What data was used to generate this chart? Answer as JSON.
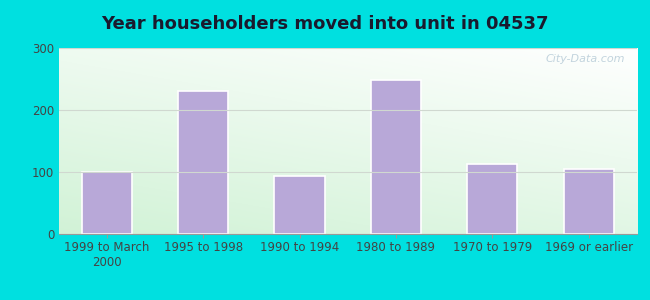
{
  "title": "Year householders moved into unit in 04537",
  "categories": [
    "1999 to March\n2000",
    "1995 to 1998",
    "1990 to 1994",
    "1980 to 1989",
    "1970 to 1979",
    "1969 or earlier"
  ],
  "values": [
    100,
    230,
    93,
    248,
    113,
    105
  ],
  "bar_color": "#b8a8d8",
  "bar_edgecolor": "#ffffff",
  "ylim": [
    0,
    300
  ],
  "yticks": [
    0,
    100,
    200,
    300
  ],
  "background_outer": "#00e0e0",
  "title_fontsize": 13,
  "tick_fontsize": 8.5,
  "watermark_text": "City-Data.com",
  "watermark_color": "#b8ccd8",
  "grid_color": "#d0d8d0"
}
